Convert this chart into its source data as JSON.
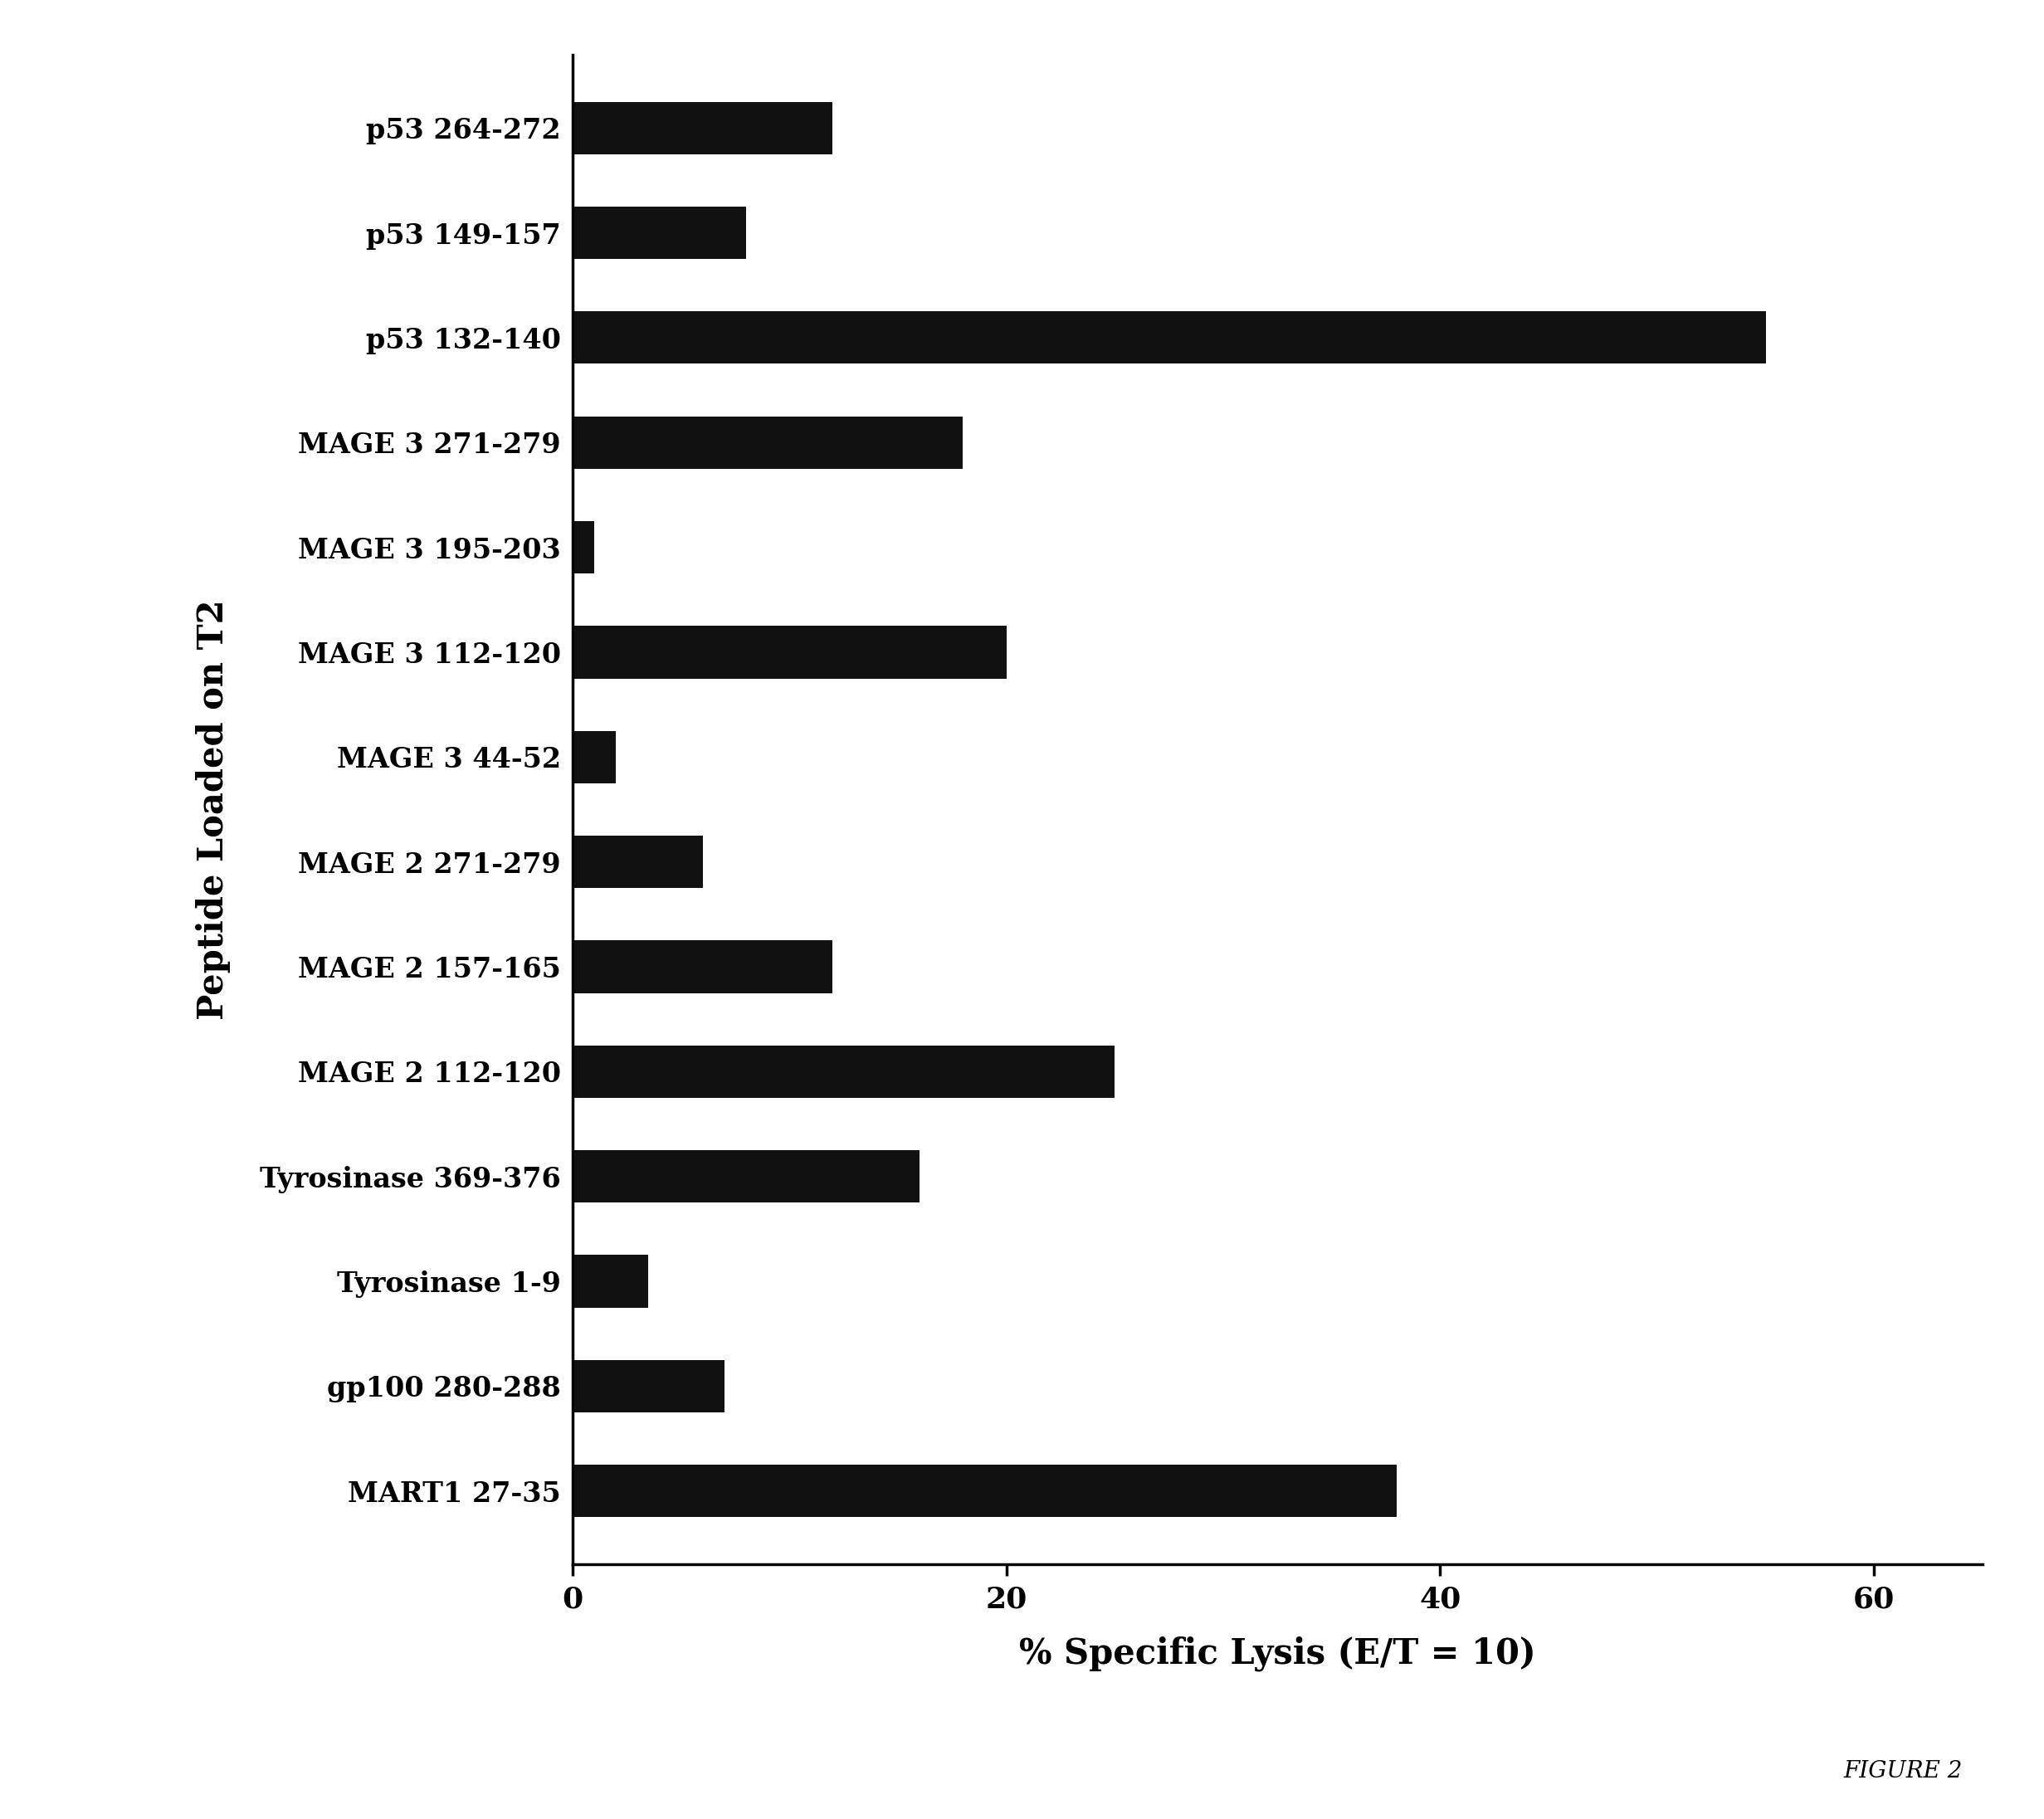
{
  "categories": [
    "MART1 27-35",
    "gp100 280-288",
    "Tyrosinase 1-9",
    "Tyrosinase 369-376",
    "MAGE 2 112-120",
    "MAGE 2 157-165",
    "MAGE 2 271-279",
    "MAGE 3 44-52",
    "MAGE 3 112-120",
    "MAGE 3 195-203",
    "MAGE 3 271-279",
    "p53 132-140",
    "p53 149-157",
    "p53 264-272"
  ],
  "values": [
    38,
    7,
    3.5,
    16,
    25,
    12,
    6,
    2,
    20,
    1,
    18,
    55,
    8,
    12
  ],
  "bar_color": "#111111",
  "xlabel": "% Specific Lysis (E/T = 10)",
  "ylabel": "Peptide Loaded on T2",
  "xlim": [
    0,
    65
  ],
  "xticks": [
    0,
    20,
    40,
    60
  ],
  "figure_label": "FIGURE 2",
  "background_color": "#ffffff",
  "bar_height": 0.5,
  "xlabel_fontsize": 30,
  "ylabel_fontsize": 30,
  "yticklabel_fontsize": 24,
  "xticklabel_fontsize": 26,
  "figure_label_fontsize": 20
}
